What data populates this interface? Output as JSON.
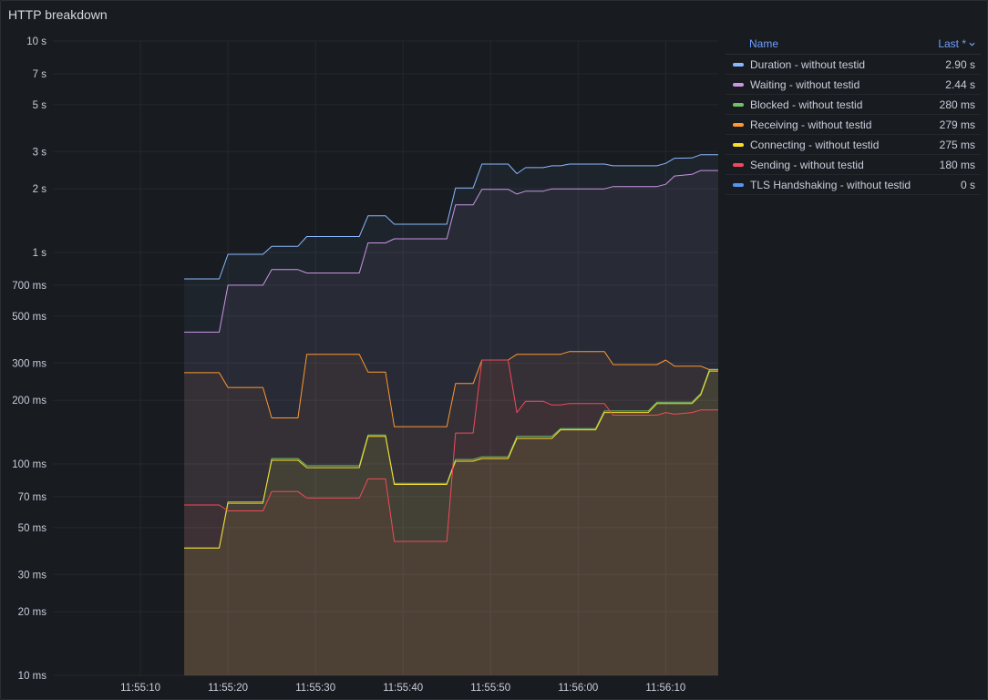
{
  "panel": {
    "title": "HTTP breakdown"
  },
  "legend": {
    "name_header": "Name",
    "last_header": "Last *",
    "sort_icon": "chevron-down-icon",
    "rows": [
      {
        "name": "Duration - without testid",
        "value": "2.90 s",
        "color": "#8ab8ff"
      },
      {
        "name": "Waiting - without testid",
        "value": "2.44 s",
        "color": "#ca95e5"
      },
      {
        "name": "Blocked - without testid",
        "value": "280 ms",
        "color": "#73bf69"
      },
      {
        "name": "Receiving - without testid",
        "value": "279 ms",
        "color": "#ff9830"
      },
      {
        "name": "Connecting - without testid",
        "value": "275 ms",
        "color": "#fade2a"
      },
      {
        "name": "Sending - without testid",
        "value": "180 ms",
        "color": "#f2495c"
      },
      {
        "name": "TLS Handshaking - without testid",
        "value": "0 s",
        "color": "#5794f2"
      }
    ]
  },
  "chart_data": {
    "type": "line",
    "title": "HTTP breakdown",
    "yscale": "log",
    "ylim_ms": [
      10,
      10000
    ],
    "y_ticks_ms": [
      10,
      20,
      30,
      50,
      70,
      100,
      200,
      300,
      500,
      700,
      1000,
      2000,
      3000,
      5000,
      7000,
      10000
    ],
    "y_tick_labels": [
      "10 ms",
      "20 ms",
      "30 ms",
      "50 ms",
      "70 ms",
      "100 ms",
      "200 ms",
      "300 ms",
      "500 ms",
      "700 ms",
      "1 s",
      "2 s",
      "3 s",
      "5 s",
      "7 s",
      "10 s"
    ],
    "x_ticks": [
      "11:55:10",
      "11:55:20",
      "11:55:30",
      "11:55:40",
      "11:55:50",
      "11:56:00",
      "11:56:10"
    ],
    "xlim": [
      "11:55:00",
      "11:56:16"
    ],
    "grid": true,
    "legend_position": "right",
    "series": [
      {
        "name": "Duration - without testid",
        "color": "#8ab8ff",
        "fill": true,
        "points": [
          [
            "11:55:15",
            750
          ],
          [
            "11:55:19",
            750
          ],
          [
            "11:55:20",
            980
          ],
          [
            "11:55:24",
            980
          ],
          [
            "11:55:25",
            1070
          ],
          [
            "11:55:28",
            1070
          ],
          [
            "11:55:29",
            1190
          ],
          [
            "11:55:35",
            1190
          ],
          [
            "11:55:36",
            1490
          ],
          [
            "11:55:38",
            1490
          ],
          [
            "11:55:39",
            1360
          ],
          [
            "11:55:45",
            1360
          ],
          [
            "11:55:46",
            2020
          ],
          [
            "11:55:48",
            2020
          ],
          [
            "11:55:49",
            2620
          ],
          [
            "11:55:52",
            2620
          ],
          [
            "11:55:53",
            2360
          ],
          [
            "11:55:54",
            2520
          ],
          [
            "11:55:56",
            2520
          ],
          [
            "11:55:57",
            2570
          ],
          [
            "11:55:58",
            2570
          ],
          [
            "11:55:59",
            2620
          ],
          [
            "11:56:03",
            2620
          ],
          [
            "11:56:04",
            2570
          ],
          [
            "11:56:09",
            2570
          ],
          [
            "11:56:10",
            2640
          ],
          [
            "11:56:11",
            2790
          ],
          [
            "11:56:13",
            2800
          ],
          [
            "11:56:14",
            2900
          ],
          [
            "11:56:16",
            2900
          ]
        ]
      },
      {
        "name": "Waiting - without testid",
        "color": "#ca95e5",
        "fill": true,
        "points": [
          [
            "11:55:15",
            420
          ],
          [
            "11:55:19",
            420
          ],
          [
            "11:55:20",
            700
          ],
          [
            "11:55:24",
            700
          ],
          [
            "11:55:25",
            830
          ],
          [
            "11:55:28",
            830
          ],
          [
            "11:55:29",
            800
          ],
          [
            "11:55:35",
            800
          ],
          [
            "11:55:36",
            1110
          ],
          [
            "11:55:38",
            1110
          ],
          [
            "11:55:39",
            1160
          ],
          [
            "11:55:45",
            1160
          ],
          [
            "11:55:46",
            1680
          ],
          [
            "11:55:48",
            1680
          ],
          [
            "11:55:49",
            1990
          ],
          [
            "11:55:52",
            1990
          ],
          [
            "11:55:53",
            1890
          ],
          [
            "11:55:54",
            1950
          ],
          [
            "11:55:56",
            1950
          ],
          [
            "11:55:57",
            2000
          ],
          [
            "11:56:03",
            2000
          ],
          [
            "11:56:04",
            2050
          ],
          [
            "11:56:09",
            2050
          ],
          [
            "11:56:10",
            2100
          ],
          [
            "11:56:11",
            2300
          ],
          [
            "11:56:13",
            2340
          ],
          [
            "11:56:14",
            2440
          ],
          [
            "11:56:16",
            2440
          ]
        ]
      },
      {
        "name": "Blocked - without testid",
        "color": "#73bf69",
        "fill": true,
        "points": [
          [
            "11:55:15",
            40
          ],
          [
            "11:55:19",
            40
          ],
          [
            "11:55:20",
            65
          ],
          [
            "11:55:24",
            65
          ],
          [
            "11:55:25",
            106
          ],
          [
            "11:55:28",
            106
          ],
          [
            "11:55:29",
            98
          ],
          [
            "11:55:35",
            98
          ],
          [
            "11:55:36",
            137
          ],
          [
            "11:55:38",
            137
          ],
          [
            "11:55:39",
            81
          ],
          [
            "11:55:45",
            81
          ],
          [
            "11:55:46",
            105
          ],
          [
            "11:55:48",
            105
          ],
          [
            "11:55:49",
            108
          ],
          [
            "11:55:52",
            108
          ],
          [
            "11:55:53",
            135
          ],
          [
            "11:55:57",
            135
          ],
          [
            "11:55:58",
            147
          ],
          [
            "11:56:02",
            147
          ],
          [
            "11:56:03",
            178
          ],
          [
            "11:56:08",
            178
          ],
          [
            "11:56:09",
            196
          ],
          [
            "11:56:13",
            196
          ],
          [
            "11:56:14",
            215
          ],
          [
            "11:56:15",
            280
          ],
          [
            "11:56:16",
            280
          ]
        ]
      },
      {
        "name": "Receiving - without testid",
        "color": "#ff9830",
        "fill": true,
        "points": [
          [
            "11:55:15",
            270
          ],
          [
            "11:55:19",
            270
          ],
          [
            "11:55:20",
            230
          ],
          [
            "11:55:24",
            230
          ],
          [
            "11:55:25",
            165
          ],
          [
            "11:55:28",
            165
          ],
          [
            "11:55:29",
            330
          ],
          [
            "11:55:35",
            330
          ],
          [
            "11:55:36",
            272
          ],
          [
            "11:55:38",
            272
          ],
          [
            "11:55:39",
            150
          ],
          [
            "11:55:45",
            150
          ],
          [
            "11:55:46",
            240
          ],
          [
            "11:55:48",
            240
          ],
          [
            "11:55:49",
            310
          ],
          [
            "11:55:52",
            310
          ],
          [
            "11:55:53",
            330
          ],
          [
            "11:55:58",
            330
          ],
          [
            "11:55:59",
            340
          ],
          [
            "11:56:03",
            340
          ],
          [
            "11:56:04",
            295
          ],
          [
            "11:56:09",
            295
          ],
          [
            "11:56:10",
            310
          ],
          [
            "11:56:11",
            290
          ],
          [
            "11:56:14",
            290
          ],
          [
            "11:56:15",
            279
          ],
          [
            "11:56:16",
            279
          ]
        ]
      },
      {
        "name": "Connecting - without testid",
        "color": "#fade2a",
        "fill": true,
        "points": [
          [
            "11:55:15",
            40
          ],
          [
            "11:55:19",
            40
          ],
          [
            "11:55:20",
            66
          ],
          [
            "11:55:24",
            66
          ],
          [
            "11:55:25",
            104
          ],
          [
            "11:55:28",
            104
          ],
          [
            "11:55:29",
            96
          ],
          [
            "11:55:35",
            96
          ],
          [
            "11:55:36",
            135
          ],
          [
            "11:55:38",
            135
          ],
          [
            "11:55:39",
            80
          ],
          [
            "11:55:45",
            80
          ],
          [
            "11:55:46",
            103
          ],
          [
            "11:55:48",
            103
          ],
          [
            "11:55:49",
            106
          ],
          [
            "11:55:52",
            106
          ],
          [
            "11:55:53",
            132
          ],
          [
            "11:55:57",
            132
          ],
          [
            "11:55:58",
            145
          ],
          [
            "11:56:02",
            145
          ],
          [
            "11:56:03",
            175
          ],
          [
            "11:56:08",
            175
          ],
          [
            "11:56:09",
            193
          ],
          [
            "11:56:13",
            193
          ],
          [
            "11:56:14",
            212
          ],
          [
            "11:56:15",
            275
          ],
          [
            "11:56:16",
            275
          ]
        ]
      },
      {
        "name": "Sending - without testid",
        "color": "#f2495c",
        "fill": true,
        "points": [
          [
            "11:55:15",
            64
          ],
          [
            "11:55:19",
            64
          ],
          [
            "11:55:20",
            60
          ],
          [
            "11:55:24",
            60
          ],
          [
            "11:55:25",
            74
          ],
          [
            "11:55:28",
            74
          ],
          [
            "11:55:29",
            69
          ],
          [
            "11:55:35",
            69
          ],
          [
            "11:55:36",
            85
          ],
          [
            "11:55:38",
            85
          ],
          [
            "11:55:39",
            43
          ],
          [
            "11:55:45",
            43
          ],
          [
            "11:55:46",
            140
          ],
          [
            "11:55:48",
            140
          ],
          [
            "11:55:49",
            310
          ],
          [
            "11:55:52",
            310
          ],
          [
            "11:55:53",
            175
          ],
          [
            "11:55:54",
            198
          ],
          [
            "11:55:56",
            198
          ],
          [
            "11:55:57",
            190
          ],
          [
            "11:55:58",
            190
          ],
          [
            "11:55:59",
            193
          ],
          [
            "11:56:03",
            193
          ],
          [
            "11:56:04",
            170
          ],
          [
            "11:56:09",
            170
          ],
          [
            "11:56:10",
            175
          ],
          [
            "11:56:11",
            172
          ],
          [
            "11:56:13",
            175
          ],
          [
            "11:56:14",
            180
          ],
          [
            "11:56:16",
            180
          ]
        ]
      },
      {
        "name": "TLS Handshaking - without testid",
        "color": "#5794f2",
        "fill": false,
        "points": []
      }
    ]
  }
}
